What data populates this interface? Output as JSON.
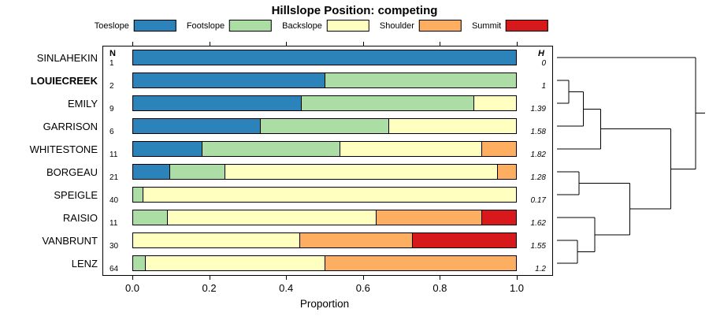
{
  "title": "Hillslope Position: competing",
  "legend": [
    {
      "label": "Toeslope",
      "color": "#2B83BA"
    },
    {
      "label": "Footslope",
      "color": "#ABDDA4"
    },
    {
      "label": "Backslope",
      "color": "#FFFFBF"
    },
    {
      "label": "Shoulder",
      "color": "#FDAE61"
    },
    {
      "label": "Summit",
      "color": "#D7191C"
    }
  ],
  "axis": {
    "xlabel": "Proportion",
    "ticks": [
      0,
      0.2,
      0.4,
      0.6,
      0.8,
      1.0
    ],
    "n_header": "N",
    "h_header": "H"
  },
  "chart_data": {
    "type": "bar",
    "stacked": true,
    "orientation": "horizontal",
    "title": "Hillslope Position: competing",
    "xlabel": "Proportion",
    "xlim": [
      0,
      1
    ],
    "legend_position": "top",
    "series_names": [
      "Toeslope",
      "Footslope",
      "Backslope",
      "Shoulder",
      "Summit"
    ],
    "colors": [
      "#2B83BA",
      "#ABDDA4",
      "#FFFFBF",
      "#FDAE61",
      "#D7191C"
    ],
    "rows": [
      {
        "site": "SINLAHEKIN",
        "bold": false,
        "n": 1,
        "h": "0",
        "values": [
          1,
          0,
          0,
          0,
          0
        ]
      },
      {
        "site": "LOUIECREEK",
        "bold": true,
        "n": 2,
        "h": "1",
        "values": [
          0.5,
          0.5,
          0,
          0,
          0
        ]
      },
      {
        "site": "EMILY",
        "bold": false,
        "n": 9,
        "h": "1.39",
        "values": [
          0.44,
          0.45,
          0.11,
          0,
          0
        ]
      },
      {
        "site": "GARRISON",
        "bold": false,
        "n": 6,
        "h": "1.58",
        "values": [
          0.333,
          0.334,
          0.333,
          0,
          0
        ]
      },
      {
        "site": "WHITESTONE",
        "bold": false,
        "n": 11,
        "h": "1.82",
        "values": [
          0.18,
          0.36,
          0.37,
          0.09,
          0
        ]
      },
      {
        "site": "BORGEAU",
        "bold": false,
        "n": 21,
        "h": "1.28",
        "values": [
          0.095,
          0.143,
          0.714,
          0.048,
          0
        ]
      },
      {
        "site": "SPEIGLE",
        "bold": false,
        "n": 40,
        "h": "0.17",
        "values": [
          0,
          0.025,
          0.975,
          0,
          0
        ]
      },
      {
        "site": "RAISIO",
        "bold": false,
        "n": 11,
        "h": "1.62",
        "values": [
          0,
          0.09,
          0.545,
          0.275,
          0.09
        ]
      },
      {
        "site": "VANBRUNT",
        "bold": false,
        "n": 30,
        "h": "1.55",
        "values": [
          0,
          0,
          0.435,
          0.295,
          0.27
        ]
      },
      {
        "site": "LENZ",
        "bold": false,
        "n": 64,
        "h": "1.2",
        "values": [
          0,
          0.03,
          0.47,
          0.5,
          0
        ]
      }
    ],
    "dendrogram": {
      "note": "leaves are rows top-to-bottom; h is normalized merge height (0 leaf side, 1 root side)",
      "merges": [
        {
          "a": "L1",
          "b": "L2",
          "h": 0.08
        },
        {
          "a": "M0",
          "b": "L3",
          "h": 0.18
        },
        {
          "a": "M1",
          "b": "L4",
          "h": 0.3
        },
        {
          "a": "L5",
          "b": "L6",
          "h": 0.15
        },
        {
          "a": "L8",
          "b": "L9",
          "h": 0.14
        },
        {
          "a": "L7",
          "b": "M4",
          "h": 0.26
        },
        {
          "a": "M3",
          "b": "M5",
          "h": 0.5
        },
        {
          "a": "M2",
          "b": "M6",
          "h": 0.78
        },
        {
          "a": "L0",
          "b": "M7",
          "h": 0.95
        }
      ]
    }
  }
}
